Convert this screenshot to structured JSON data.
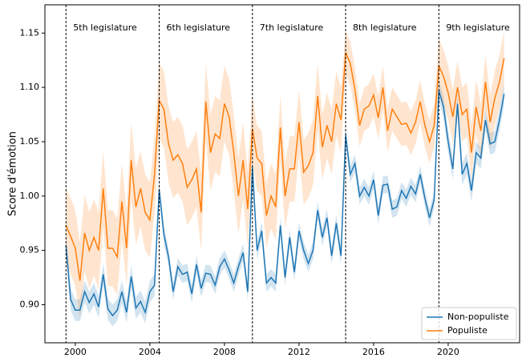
{
  "chart_data": {
    "type": "line",
    "y_label": "Score d'émotion",
    "x": [
      1999.5,
      1999.75,
      2000,
      2000.25,
      2000.5,
      2000.75,
      2001,
      2001.25,
      2001.5,
      2001.75,
      2002,
      2002.25,
      2002.5,
      2002.75,
      2003,
      2003.25,
      2003.5,
      2003.75,
      2004,
      2004.25,
      2004.5,
      2004.75,
      2005,
      2005.25,
      2005.5,
      2005.75,
      2006,
      2006.25,
      2006.5,
      2006.75,
      2007,
      2007.25,
      2007.5,
      2007.75,
      2008,
      2008.25,
      2008.5,
      2008.75,
      2009,
      2009.25,
      2009.5,
      2009.75,
      2010,
      2010.25,
      2010.5,
      2010.75,
      2011,
      2011.25,
      2011.5,
      2011.75,
      2012,
      2012.25,
      2012.5,
      2012.75,
      2013,
      2013.25,
      2013.5,
      2013.75,
      2014,
      2014.25,
      2014.5,
      2014.75,
      2015,
      2015.25,
      2015.5,
      2015.75,
      2016,
      2016.25,
      2016.5,
      2016.75,
      2017,
      2017.25,
      2017.5,
      2017.75,
      2018,
      2018.25,
      2018.5,
      2018.75,
      2019,
      2019.25,
      2019.5,
      2019.75,
      2020,
      2020.25,
      2020.5,
      2020.75,
      2021,
      2021.25,
      2021.5,
      2021.75,
      2022,
      2022.25,
      2022.5,
      2022.75,
      2023
    ],
    "series": [
      {
        "name": "Non-populiste",
        "color": "#1f77b4",
        "values": [
          0.955,
          0.905,
          0.895,
          0.895,
          0.912,
          0.902,
          0.91,
          0.898,
          0.928,
          0.896,
          0.89,
          0.895,
          0.912,
          0.893,
          0.926,
          0.897,
          0.903,
          0.893,
          0.912,
          0.918,
          1.006,
          0.965,
          0.944,
          0.912,
          0.935,
          0.928,
          0.93,
          0.91,
          0.937,
          0.915,
          0.929,
          0.928,
          0.918,
          0.935,
          0.942,
          0.932,
          0.92,
          0.935,
          0.948,
          0.912,
          1.027,
          0.95,
          0.968,
          0.92,
          0.925,
          0.92,
          0.973,
          0.925,
          0.962,
          0.93,
          0.968,
          0.95,
          0.938,
          0.95,
          0.987,
          0.962,
          0.98,
          0.945,
          0.975,
          0.945,
          1.056,
          1.02,
          1.03,
          1.0,
          1.008,
          1.0,
          1.015,
          0.982,
          1.01,
          1.011,
          0.988,
          0.99,
          1.005,
          0.998,
          1.009,
          1.002,
          1.02,
          0.998,
          0.98,
          0.997,
          1.097,
          1.082,
          1.05,
          1.025,
          1.085,
          1.02,
          1.03,
          1.005,
          1.04,
          1.035,
          1.07,
          1.048,
          1.05,
          1.07,
          1.094
        ],
        "error": [
          0.01,
          0.01,
          0.01,
          0.01,
          0.01,
          0.01,
          0.01,
          0.01,
          0.01,
          0.01,
          0.01,
          0.01,
          0.01,
          0.01,
          0.01,
          0.01,
          0.01,
          0.01,
          0.01,
          0.01,
          0.008,
          0.008,
          0.008,
          0.008,
          0.008,
          0.008,
          0.008,
          0.008,
          0.008,
          0.008,
          0.008,
          0.008,
          0.008,
          0.008,
          0.008,
          0.008,
          0.008,
          0.008,
          0.008,
          0.008,
          0.008,
          0.008,
          0.008,
          0.008,
          0.008,
          0.008,
          0.008,
          0.008,
          0.008,
          0.008,
          0.008,
          0.008,
          0.008,
          0.008,
          0.008,
          0.008,
          0.008,
          0.008,
          0.008,
          0.008,
          0.008,
          0.008,
          0.008,
          0.008,
          0.008,
          0.008,
          0.008,
          0.008,
          0.008,
          0.008,
          0.008,
          0.008,
          0.008,
          0.008,
          0.008,
          0.008,
          0.008,
          0.008,
          0.008,
          0.008,
          0.01,
          0.01,
          0.01,
          0.01,
          0.01,
          0.01,
          0.01,
          0.01,
          0.01,
          0.01,
          0.01,
          0.01,
          0.01,
          0.01,
          0.01
        ]
      },
      {
        "name": "Populiste",
        "color": "#ff7f0e",
        "values": [
          0.973,
          0.963,
          0.952,
          0.922,
          0.966,
          0.95,
          0.962,
          0.95,
          1.007,
          0.952,
          0.952,
          0.944,
          0.995,
          0.952,
          1.033,
          0.99,
          1.007,
          0.985,
          0.978,
          1.02,
          1.088,
          1.08,
          1.048,
          1.033,
          1.038,
          1.03,
          1.008,
          1.015,
          1.025,
          0.985,
          1.087,
          1.04,
          1.057,
          1.053,
          1.085,
          1.073,
          1.04,
          1.0,
          1.033,
          0.988,
          1.062,
          1.035,
          1.03,
          0.982,
          1.0,
          0.99,
          1.063,
          1.0,
          1.025,
          1.025,
          1.068,
          1.022,
          1.028,
          1.04,
          1.092,
          1.045,
          1.065,
          1.05,
          1.085,
          1.07,
          1.132,
          1.122,
          1.098,
          1.065,
          1.08,
          1.083,
          1.093,
          1.072,
          1.1,
          1.06,
          1.08,
          1.073,
          1.066,
          1.067,
          1.058,
          1.068,
          1.087,
          1.065,
          1.05,
          1.065,
          1.12,
          1.11,
          1.095,
          1.073,
          1.1,
          1.075,
          1.08,
          1.04,
          1.082,
          1.06,
          1.105,
          1.068,
          1.09,
          1.105,
          1.127
        ],
        "error": [
          0.035,
          0.035,
          0.035,
          0.035,
          0.035,
          0.035,
          0.035,
          0.035,
          0.035,
          0.035,
          0.035,
          0.035,
          0.035,
          0.035,
          0.035,
          0.035,
          0.035,
          0.035,
          0.035,
          0.035,
          0.035,
          0.035,
          0.035,
          0.035,
          0.035,
          0.035,
          0.035,
          0.035,
          0.035,
          0.035,
          0.035,
          0.035,
          0.035,
          0.035,
          0.035,
          0.035,
          0.035,
          0.035,
          0.035,
          0.035,
          0.03,
          0.03,
          0.03,
          0.03,
          0.03,
          0.03,
          0.03,
          0.03,
          0.03,
          0.03,
          0.03,
          0.03,
          0.03,
          0.03,
          0.03,
          0.03,
          0.03,
          0.03,
          0.03,
          0.03,
          0.02,
          0.02,
          0.02,
          0.02,
          0.02,
          0.02,
          0.02,
          0.02,
          0.02,
          0.02,
          0.02,
          0.02,
          0.02,
          0.02,
          0.02,
          0.02,
          0.02,
          0.02,
          0.02,
          0.02,
          0.025,
          0.025,
          0.025,
          0.025,
          0.025,
          0.025,
          0.025,
          0.025,
          0.025,
          0.025,
          0.025,
          0.025,
          0.025,
          0.025,
          0.025
        ]
      }
    ],
    "vlines": [
      {
        "value": 1999.5,
        "label": "5th legislature"
      },
      {
        "value": 2004.5,
        "label": "6th legislature"
      },
      {
        "value": 2009.5,
        "label": "7th legislature"
      },
      {
        "value": 2014.5,
        "label": "8th legislature"
      },
      {
        "value": 2019.5,
        "label": "9th legislature"
      }
    ],
    "xlim": [
      1998.37,
      2023.83
    ],
    "ylim": [
      0.865,
      1.176
    ],
    "xticks": [
      2000,
      2004,
      2008,
      2012,
      2016,
      2020
    ],
    "yticks": [
      {
        "value": 0.9,
        "label": "0.90"
      },
      0.95,
      {
        "value": 1.0,
        "label": "1.00"
      },
      1.05,
      {
        "value": 1.1,
        "label": "1.10"
      },
      1.15
    ],
    "legend": "lower right"
  }
}
